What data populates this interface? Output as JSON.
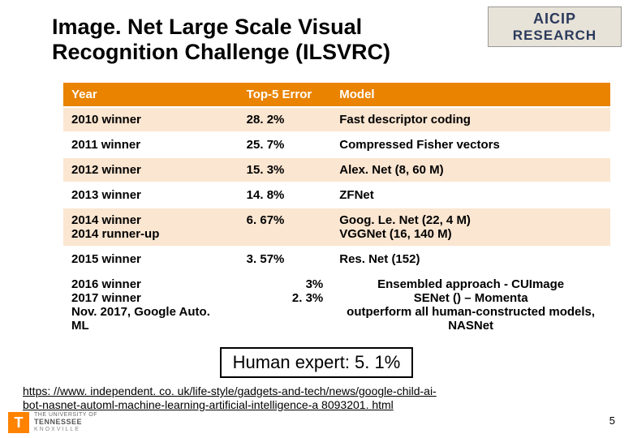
{
  "title_line1": "Image. Net Large Scale Visual",
  "title_line2": "Recognition Challenge (ILSVRC)",
  "logo_top": {
    "line1": "AICIP",
    "line2": "RESEARCH"
  },
  "table": {
    "header_bg": "#e98300",
    "row_alt_bg": "#fbe6d1",
    "row_bg": "#ffffff",
    "columns": [
      "Year",
      "Top-5 Error",
      "Model"
    ],
    "rows": [
      {
        "year": "2010 winner",
        "err": "28. 2%",
        "model": "Fast descriptor coding"
      },
      {
        "year": "2011 winner",
        "err": "25. 7%",
        "model": "Compressed Fisher vectors"
      },
      {
        "year": "2012 winner",
        "err": "15. 3%",
        "model": "Alex. Net (8, 60 M)"
      },
      {
        "year": "2013 winner",
        "err": "14. 8%",
        "model": "ZFNet"
      },
      {
        "year": "2014 winner\n2014 runner-up",
        "err": "6. 67%",
        "model": "Goog. Le. Net (22, 4 M)\nVGGNet (16, 140 M)"
      },
      {
        "year": "2015 winner",
        "err": "3. 57%",
        "model": "Res. Net (152)"
      }
    ]
  },
  "extra": {
    "years": "2016 winner\n2017 winner\nNov. 2017, Google Auto. ML",
    "errs": "3%\n2. 3%",
    "models": "Ensembled approach - CUImage\nSENet () – Momenta\noutperform all human-constructed models, NASNet"
  },
  "human_expert": "Human expert: 5. 1%",
  "url": "https: //www. independent. co. uk/life-style/gadgets-and-tech/news/google-child-ai-bot-nasnet-automl-machine-learning-artificial-intelligence-a 8093201. html",
  "page_number": "5",
  "ut_logo": {
    "t": "T",
    "line1": "THE UNIVERSITY OF",
    "line2": "TENNESSEE",
    "line3": "KNOXVILLE"
  }
}
